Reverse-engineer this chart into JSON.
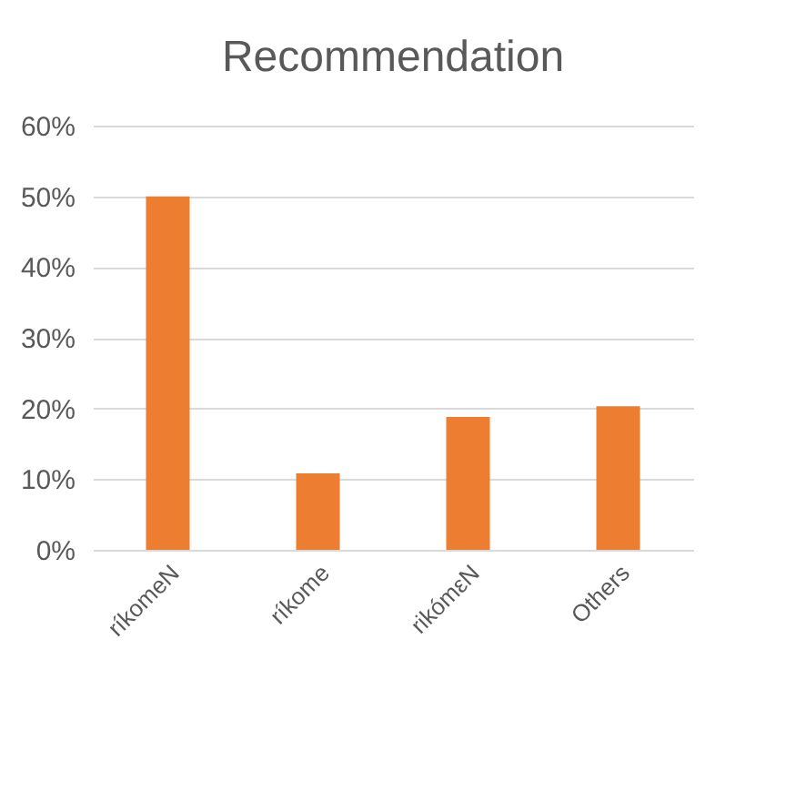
{
  "chart_data": {
    "type": "bar",
    "title": "Recommendation",
    "categories": [
      "ríkomeN",
      "ríkome",
      "rikómεN",
      "Others"
    ],
    "values": [
      50,
      10.8,
      18.8,
      20.3
    ],
    "color": "#ed7d31",
    "ylim": [
      0,
      60
    ],
    "yticks": [
      {
        "value": 0,
        "label": "0%"
      },
      {
        "value": 10,
        "label": "10%"
      },
      {
        "value": 20,
        "label": "20%"
      },
      {
        "value": 30,
        "label": "30%"
      },
      {
        "value": 40,
        "label": "40%"
      },
      {
        "value": 50,
        "label": "50%"
      },
      {
        "value": 60,
        "label": "60%"
      }
    ],
    "grid": true
  }
}
